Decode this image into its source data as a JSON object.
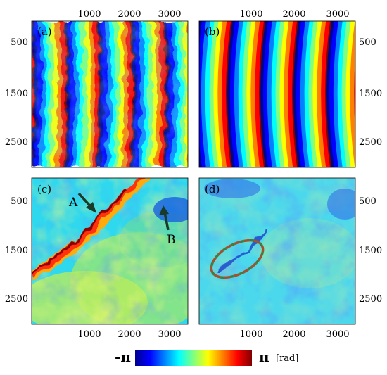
{
  "panels": [
    {
      "label": "(a)",
      "pattern": "wrapped-fringes-noisy",
      "x_ticks": [
        "1000",
        "2000",
        "3000"
      ],
      "x_axis_side": "top",
      "y_ticks": [
        "500",
        "1500",
        "2500"
      ],
      "y_axis_side": "left"
    },
    {
      "label": "(b)",
      "pattern": "smooth-curved-fringes",
      "x_ticks": [
        "1000",
        "2000",
        "3000"
      ],
      "x_axis_side": "top",
      "y_ticks": [
        "500",
        "1500",
        "2500"
      ],
      "y_axis_side": "right"
    },
    {
      "label": "(c)",
      "pattern": "residual-phase",
      "x_ticks": [
        "1000",
        "2000",
        "3000"
      ],
      "x_axis_side": "bottom",
      "y_ticks": [
        "500",
        "1500",
        "2500"
      ],
      "y_axis_side": "left",
      "annotations": [
        {
          "text": "A",
          "arrow": "pointing-down-right"
        },
        {
          "text": "B",
          "arrow": "pointing-up"
        }
      ]
    },
    {
      "label": "(d)",
      "pattern": "corrected-phase",
      "x_ticks": [
        "1000",
        "2000",
        "3000"
      ],
      "x_axis_side": "bottom",
      "y_ticks": [
        "500",
        "1500",
        "2500"
      ],
      "y_axis_side": "right",
      "highlight": "dashed-ellipse"
    }
  ],
  "colorbar": {
    "min_label": "-π",
    "max_label": "π",
    "unit": "[rad]",
    "colormap": [
      "#00008f",
      "#0000ff",
      "#0080ff",
      "#00ffff",
      "#80ff80",
      "#ffff00",
      "#ff8000",
      "#ff0000",
      "#800000"
    ]
  },
  "colors": {
    "arrow": "#1a3a2a",
    "ellipse_dash_1": "#a0522d",
    "ellipse_dash_2": "#4a7a3a",
    "panel_border": "#000000"
  }
}
